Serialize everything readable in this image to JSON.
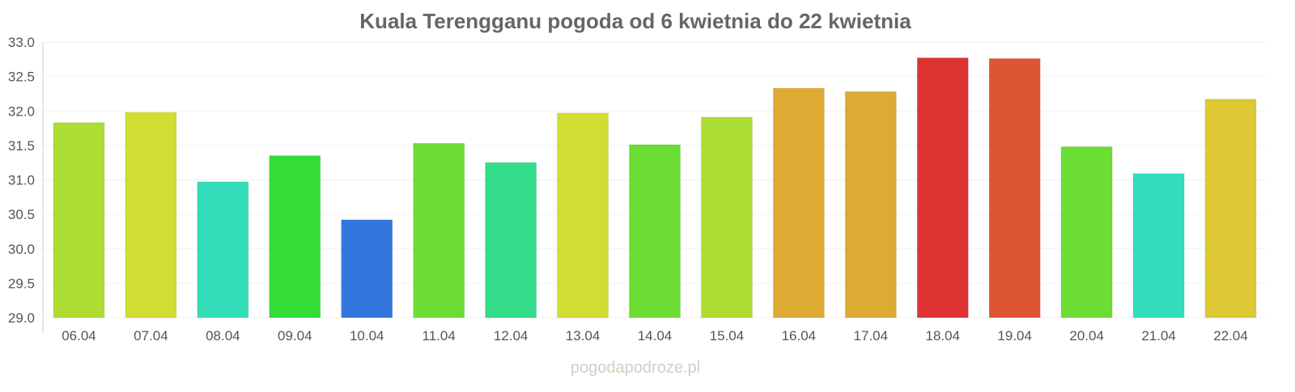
{
  "chart_data": {
    "type": "bar",
    "title": "Kuala Terengganu pogoda od 6 kwietnia do 22 kwietnia",
    "xlabel": "",
    "ylabel": "",
    "ylim": [
      29.0,
      33.0
    ],
    "yticks": [
      "29.0",
      "29.5",
      "30.0",
      "30.5",
      "31.0",
      "31.5",
      "32.0",
      "32.5",
      "33.0"
    ],
    "grid": true,
    "categories": [
      "06.04",
      "07.04",
      "08.04",
      "09.04",
      "10.04",
      "11.04",
      "12.04",
      "13.04",
      "14.04",
      "15.04",
      "16.04",
      "17.04",
      "18.04",
      "19.04",
      "20.04",
      "21.04",
      "22.04"
    ],
    "values": [
      31.83,
      31.98,
      30.97,
      31.35,
      30.42,
      31.53,
      31.25,
      31.97,
      31.51,
      31.91,
      32.33,
      32.28,
      32.77,
      32.76,
      31.48,
      31.09,
      32.17
    ],
    "colors": [
      "#addd33",
      "#d0dd33",
      "#33ddb8",
      "#33dd36",
      "#3377dd",
      "#6bdd33",
      "#33dd89",
      "#d0dd33",
      "#6bdd33",
      "#addd33",
      "#ddaa33",
      "#ddaa33",
      "#dd3333",
      "#dd5533",
      "#6bdd33",
      "#33ddbb",
      "#ddc933"
    ]
  },
  "watermark": "pogodapodroze.pl"
}
